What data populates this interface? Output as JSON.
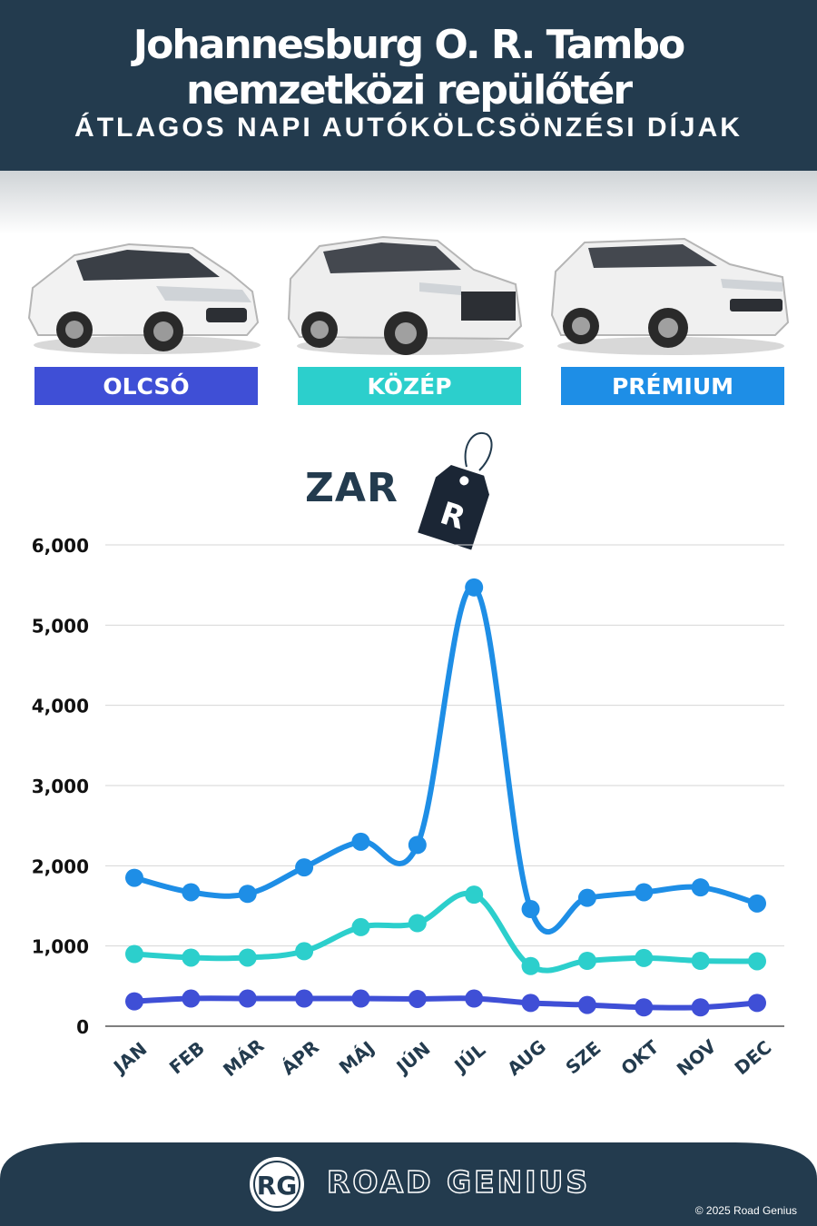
{
  "header": {
    "title_line1": "Johannesburg O. R. Tambo",
    "title_line2": "nemzetközi repülőtér",
    "subtitle": "ÁTLAGOS NAPI AUTÓKÖLCSÖNZÉSI DÍJAK"
  },
  "categories": [
    {
      "label": "OLCSÓ",
      "color": "#3f4fd6"
    },
    {
      "label": "KÖZÉP",
      "color": "#2ccfcc"
    },
    {
      "label": "PRÉMIUM",
      "color": "#1e8ee6"
    }
  ],
  "currency": {
    "text": "ZAR",
    "tag_letter": "R"
  },
  "chart_data": {
    "type": "line",
    "categories": [
      "JAN",
      "FEB",
      "MÁR",
      "ÁPR",
      "MÁJ",
      "JÚN",
      "JÚL",
      "AUG",
      "SZE",
      "OKT",
      "NOV",
      "DEC"
    ],
    "series": [
      {
        "name": "OLCSÓ",
        "color": "#3f4fd6",
        "values": [
          310,
          345,
          345,
          345,
          345,
          340,
          345,
          290,
          265,
          235,
          235,
          290
        ]
      },
      {
        "name": "KÖZÉP",
        "color": "#2ccfcc",
        "values": [
          900,
          855,
          855,
          935,
          1235,
          1285,
          1640,
          750,
          815,
          850,
          815,
          810
        ]
      },
      {
        "name": "PRÉMIUM",
        "color": "#1e8ee6",
        "values": [
          1850,
          1670,
          1650,
          1980,
          2300,
          2260,
          5470,
          1460,
          1600,
          1670,
          1730,
          1530
        ]
      }
    ],
    "yticks": [
      "0",
      "1,000",
      "2,000",
      "3,000",
      "4,000",
      "5,000",
      "6,000"
    ],
    "ylim": [
      0,
      6000
    ],
    "grid": true,
    "title": "",
    "xlabel": "",
    "ylabel": ""
  },
  "footer": {
    "logo_initials": "RG",
    "brand": "ROAD GENIUS",
    "copyright": "© 2025 Road Genius",
    "bg_color": "#233b4e"
  }
}
